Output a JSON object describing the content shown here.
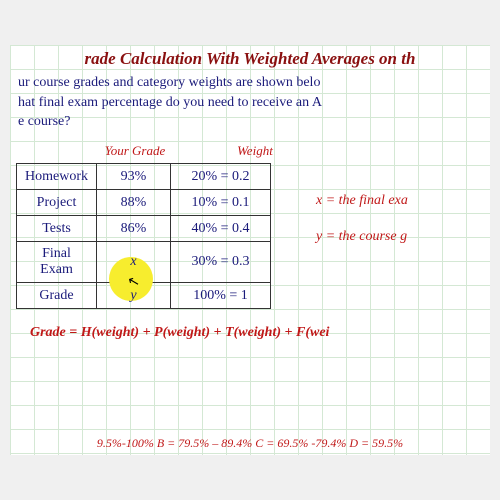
{
  "title_text": "rade Calculation With Weighted Averages on th",
  "title_color": "#8a1010",
  "question_line1": "ur course grades and category weights are shown belo",
  "question_line2": "hat final exam percentage do you need to receive an A",
  "question_line3": "e course?",
  "header_grade": "Your Grade",
  "header_weight": "Weight",
  "table": {
    "rows": [
      {
        "label": "Homework",
        "grade": "93%",
        "weight": "20% = 0.2"
      },
      {
        "label": "Project",
        "grade": "88%",
        "weight": "10% = 0.1"
      },
      {
        "label": "Tests",
        "grade": "86%",
        "weight": "40% = 0.4"
      },
      {
        "label": "Final Exam",
        "grade": "x",
        "weight": "30% = 0.3"
      },
      {
        "label": "Grade",
        "grade": "y",
        "weight": "100% = 1"
      }
    ]
  },
  "side_equation1": "x = the final exa",
  "side_equation2": "y = the course g",
  "formula_text": "Grade = H(weight) + P(weight) + T(weight) + F(wei",
  "grade_scale_text": "9.5%-100%    B = 79.5% – 89.4%    C = 69.5% -79.4%    D = 59.5%",
  "colors": {
    "text_blue": "#1a1a7a",
    "text_dark_red": "#8a1010",
    "text_red": "#c01818",
    "highlight_yellow": "#f7ed2e",
    "grid_green": "#d4e8d4"
  }
}
